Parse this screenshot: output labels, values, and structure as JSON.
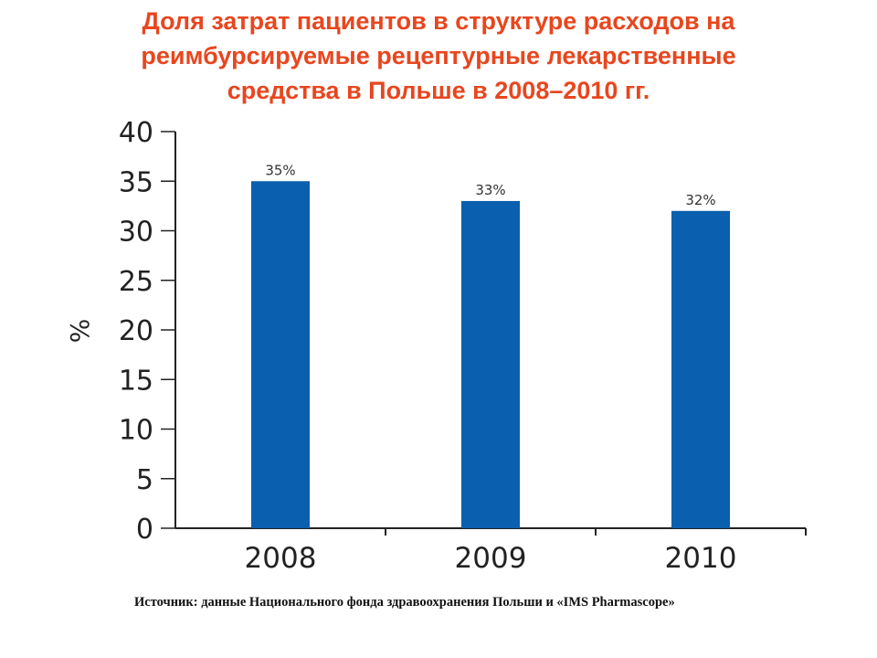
{
  "title_lines": [
    "Доля затрат пациентов в структуре расходов на",
    "реимбурсируемые рецептурные лекарственные",
    "средства в Польше в 2008–2010 гг."
  ],
  "source": "Источник: данные Национального фонда здравоохранения Польши и «IMS Pharmascope»",
  "colors": {
    "title": "#e8461e",
    "bar": "#0a5fae",
    "axis": "#222222"
  },
  "chart_data": {
    "type": "bar",
    "categories": [
      "2008",
      "2009",
      "2010"
    ],
    "values": [
      35,
      33,
      32
    ],
    "data_labels": [
      "35%",
      "33%",
      "32%"
    ],
    "ylabel": "%",
    "xlabel": "",
    "ylim": [
      0,
      40
    ],
    "yticks": [
      "0",
      "5",
      "10",
      "15",
      "20",
      "25",
      "30",
      "35",
      "40"
    ],
    "grid": false,
    "legend": "none"
  }
}
